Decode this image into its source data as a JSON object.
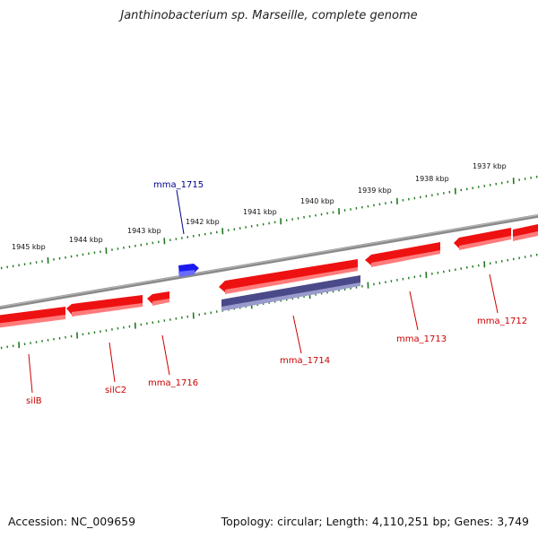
{
  "title": "Janthinobacterium sp. Marseille, complete genome",
  "footer": {
    "accession": "Accession: NC_009659",
    "summary": "Topology: circular; Length: 4,110,251 bp; Genes: 3,749"
  },
  "colors": {
    "backbone": "#8a8a8a",
    "ticks": "#1f7a1f",
    "gene_red": "#ee1111",
    "gene_red_light": "#ff8080",
    "gene_blue": "#1a1aee",
    "gene_navy": "#4a4a8a",
    "label_red": "#cc0000",
    "label_blue": "#00008b"
  },
  "scale_labels": [
    "1945 kbp",
    "1944 kbp",
    "1943 kbp",
    "1942 kbp",
    "1941 kbp",
    "1940 kbp",
    "1939 kbp",
    "1938 kbp",
    "1937 kbp"
  ],
  "gene_labels": {
    "mma_1715": "mma_1715",
    "silB": "silB",
    "silC2": "silC2",
    "mma_1716": "mma_1716",
    "mma_1714": "mma_1714",
    "mma_1713": "mma_1713",
    "mma_1712": "mma_1712"
  }
}
